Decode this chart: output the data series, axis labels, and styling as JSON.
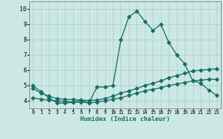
{
  "xlabel": "Humidex (Indice chaleur)",
  "bg_color": "#cce8e5",
  "grid_color": "#aaceca",
  "line_color": "#1a6e64",
  "xlim": [
    -0.5,
    23.5
  ],
  "ylim": [
    3.5,
    10.5
  ],
  "xticks": [
    0,
    1,
    2,
    3,
    4,
    5,
    6,
    7,
    8,
    9,
    10,
    11,
    12,
    13,
    14,
    15,
    16,
    17,
    18,
    19,
    20,
    21,
    22,
    23
  ],
  "yticks": [
    4,
    5,
    6,
    7,
    8,
    9,
    10
  ],
  "line1_x": [
    0,
    1,
    2,
    3,
    4,
    5,
    6,
    7,
    8,
    9,
    10,
    11,
    12,
    13,
    14,
    15,
    16,
    17,
    18,
    19,
    20,
    21,
    22,
    23
  ],
  "line1_y": [
    5.0,
    4.6,
    4.2,
    3.85,
    3.85,
    3.9,
    4.05,
    3.85,
    4.9,
    4.9,
    5.0,
    8.0,
    9.5,
    9.85,
    9.2,
    8.6,
    9.0,
    7.8,
    7.0,
    6.4,
    5.3,
    5.15,
    4.7,
    4.35
  ],
  "line2_x": [
    0,
    1,
    2,
    3,
    4,
    5,
    6,
    7,
    8,
    9,
    10,
    11,
    12,
    13,
    14,
    15,
    16,
    17,
    18,
    19,
    20,
    21,
    22,
    23
  ],
  "line2_y": [
    4.2,
    4.1,
    4.05,
    4.0,
    3.95,
    3.92,
    3.9,
    3.88,
    3.9,
    4.0,
    4.1,
    4.2,
    4.35,
    4.5,
    4.65,
    4.75,
    4.85,
    5.0,
    5.1,
    5.2,
    5.3,
    5.35,
    5.4,
    5.4
  ],
  "line3_x": [
    0,
    1,
    2,
    3,
    4,
    5,
    6,
    7,
    8,
    9,
    10,
    11,
    12,
    13,
    14,
    15,
    16,
    17,
    18,
    19,
    20,
    21,
    22,
    23
  ],
  "line3_y": [
    4.8,
    4.5,
    4.3,
    4.15,
    4.1,
    4.08,
    4.05,
    4.02,
    4.05,
    4.15,
    4.3,
    4.5,
    4.65,
    4.8,
    5.0,
    5.15,
    5.3,
    5.5,
    5.65,
    5.8,
    5.95,
    6.0,
    6.05,
    6.1
  ],
  "marker_size": 2.5,
  "linewidth": 1.0
}
